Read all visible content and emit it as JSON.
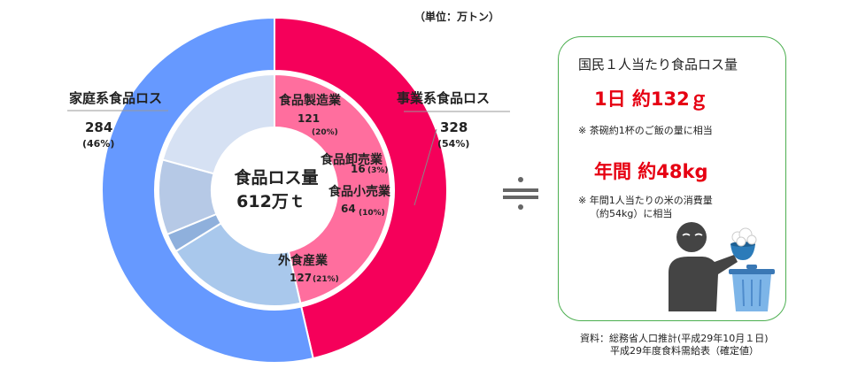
{
  "unit_label": "（単位：万トン）",
  "chart_data": {
    "type": "pie",
    "center_label": {
      "line1": "食品ロス量",
      "line2": "612万ｔ"
    },
    "total": 612,
    "outer_ring": [
      {
        "name": "家庭系食品ロス",
        "value": 284,
        "percent": "(46%)",
        "color": "#f5005a"
      },
      {
        "name": "事業系食品ロス",
        "value": 328,
        "percent": "(54%)",
        "color": "#6699ff"
      }
    ],
    "inner_ring": [
      {
        "name": "家庭系",
        "value": 284,
        "color": "#ff6e9e"
      },
      {
        "name": "食品製造業",
        "value": 121,
        "percent": "(20%)",
        "color": "#a9c8ec"
      },
      {
        "name": "食品卸売業",
        "value": 16,
        "percent": "(3%)",
        "color": "#8fb0dc"
      },
      {
        "name": "食品小売業",
        "value": 64,
        "percent": "(10%)",
        "color": "#b6c9e6"
      },
      {
        "name": "外食産業",
        "value": 127,
        "percent": "(21%)",
        "color": "#d6e1f3"
      }
    ]
  },
  "approx_symbol": "≒",
  "info_box": {
    "title": "国民１人当たり食品ロス量",
    "daily": "1日 約132ｇ",
    "daily_note": "※ 茶碗約1杯のご飯の量に相当",
    "yearly": "年間 約48kg",
    "yearly_note_line1": "※ 年間1人当たりの米の消費量",
    "yearly_note_line2": "（約54kg）に相当",
    "illustration": "person-throwing-rice-into-trash-icon"
  },
  "source": {
    "line1": "資料：総務省人口推計(平成29年10月１日)",
    "line2": "平成29年度食料需給表（確定値）"
  },
  "colors": {
    "box_border": "#4caf50",
    "highlight_red": "#e60012"
  }
}
